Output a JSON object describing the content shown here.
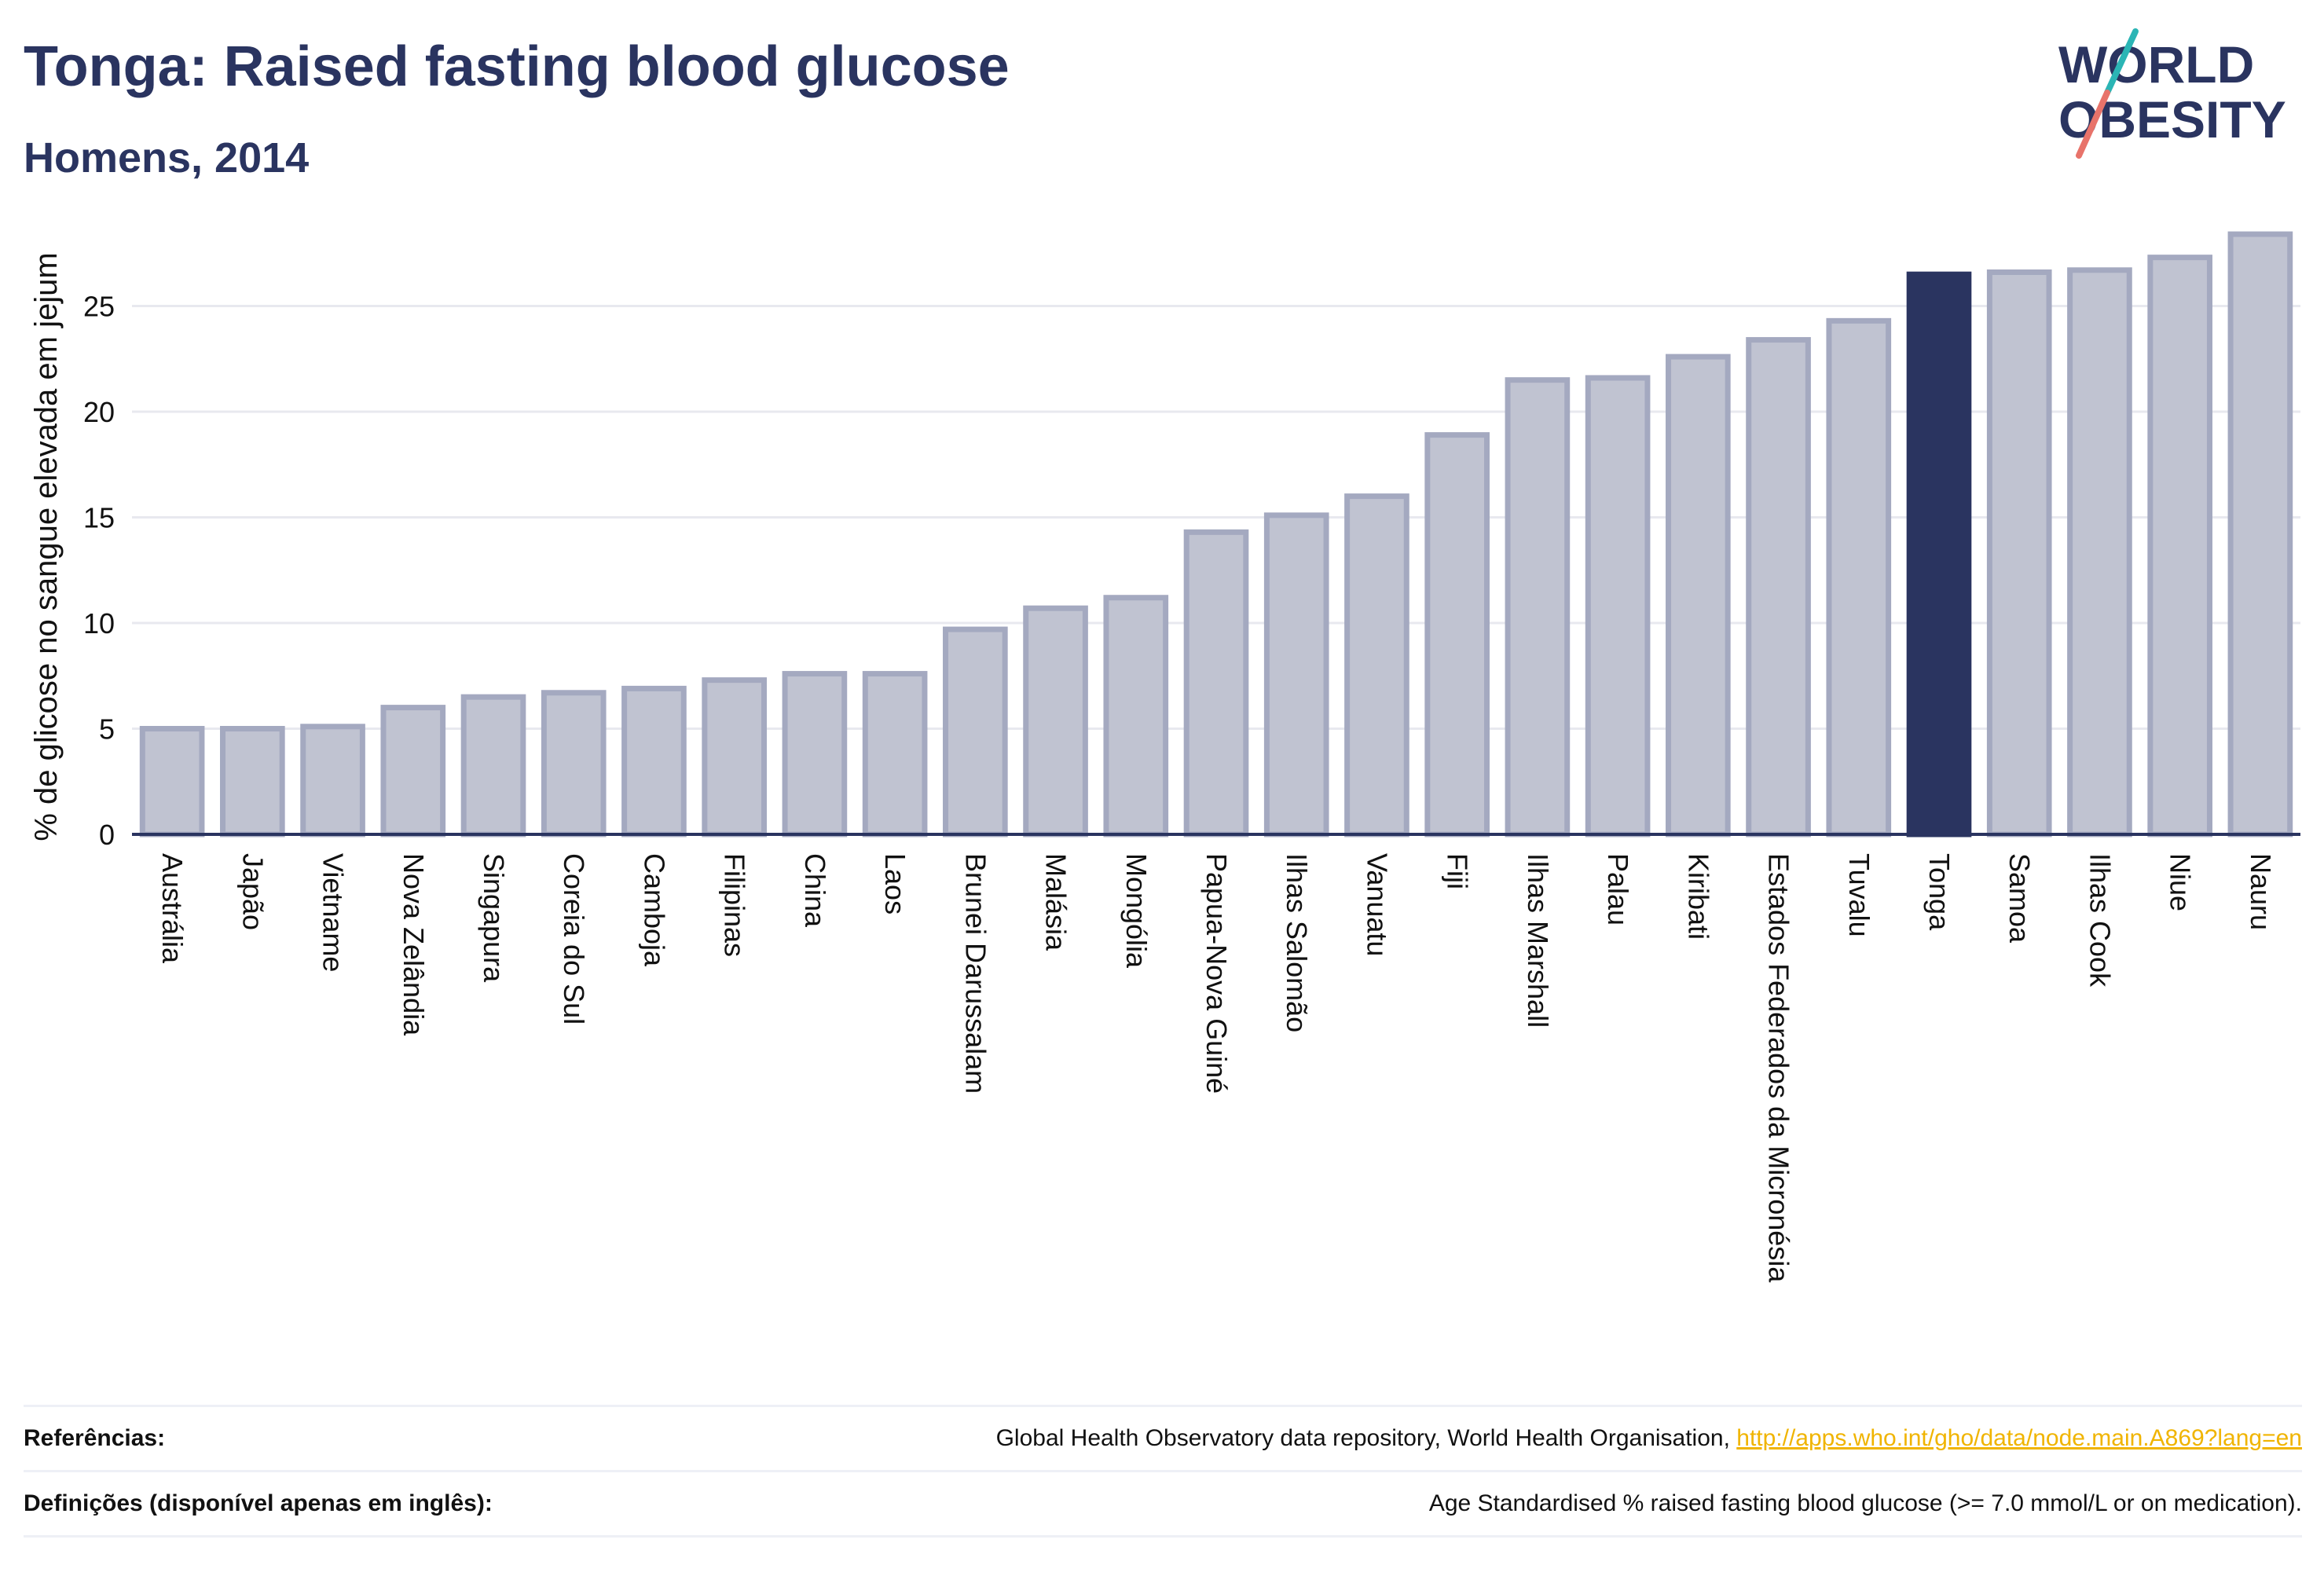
{
  "header": {
    "title": "Tonga: Raised fasting blood glucose",
    "subtitle": "Homens, 2014"
  },
  "logo": {
    "line1": "WORLD",
    "line2": "OBESITY"
  },
  "chart_data": {
    "type": "bar",
    "ylabel": "% de glicose no sangue elevada em jejum",
    "ylim": [
      0,
      28.7
    ],
    "yticks": [
      0,
      5,
      10,
      15,
      20,
      25
    ],
    "grid": true,
    "highlight": "Tonga",
    "colors": {
      "bar": "#c0c3d1",
      "bar_border": "#a4a9c0",
      "highlight": "#2a3460",
      "grid": "#e8e9ef",
      "axis": "#2a3460"
    },
    "categories": [
      "Austrália",
      "Japão",
      "Vietname",
      "Nova Zelândia",
      "Singapura",
      "Coreia do Sul",
      "Camboja",
      "Filipinas",
      "China",
      "Laos",
      "Brunei Darussalam",
      "Malásia",
      "Mongólia",
      "Papua-Nova Guiné",
      "Ilhas Salomão",
      "Vanuatu",
      "Fiji",
      "Ilhas Marshall",
      "Palau",
      "Kiribati",
      "Estados Federados da Micronésia",
      "Tuvalu",
      "Tonga",
      "Samoa",
      "Ilhas Cook",
      "Niue",
      "Nauru"
    ],
    "values": [
      5.0,
      5.0,
      5.1,
      6.0,
      6.5,
      6.7,
      6.9,
      7.3,
      7.6,
      7.6,
      9.7,
      10.7,
      11.2,
      14.3,
      15.1,
      16.0,
      18.9,
      21.5,
      21.6,
      22.6,
      23.4,
      24.3,
      26.5,
      26.6,
      26.7,
      27.3,
      28.4
    ]
  },
  "footer": {
    "references_label": "Referências:",
    "references_text": "Global Health Observatory data repository, World Health Organisation, ",
    "references_link": "http://apps.who.int/gho/data/node.main.A869?lang=en",
    "definitions_label": "Definições (disponível apenas em inglês):",
    "definitions_text": "Age Standardised % raised fasting blood glucose (>= 7.0 mmol/L or on medication)."
  }
}
